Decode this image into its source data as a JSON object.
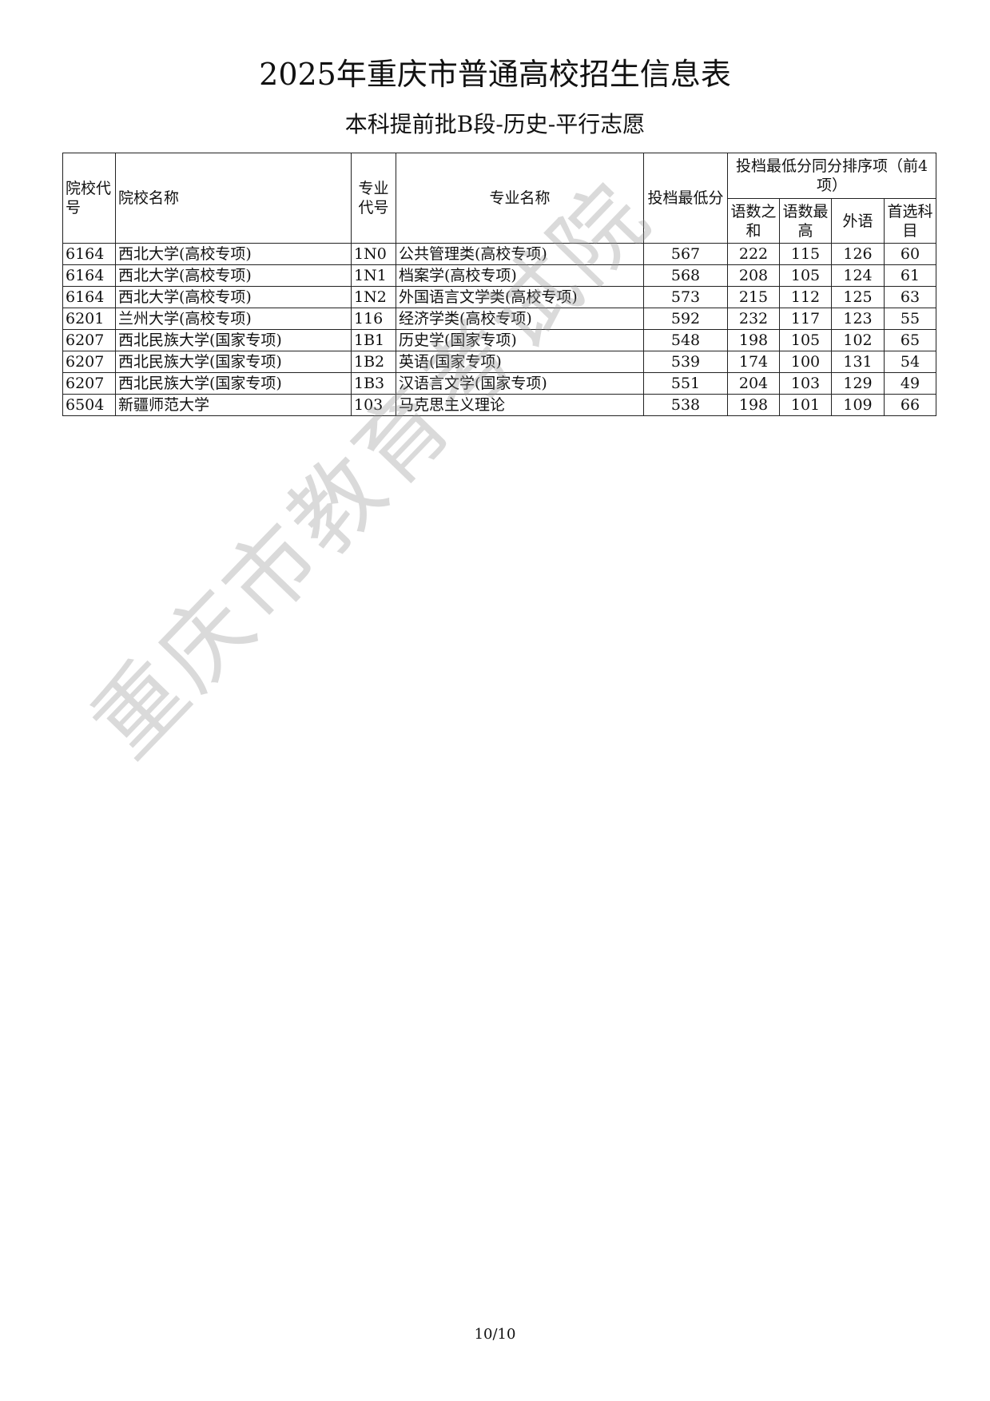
{
  "title": "2025年重庆市普通高校招生信息表",
  "subtitle": "本科提前批B段-历史-平行志愿",
  "headers": {
    "school_code": "院校代号",
    "school_name": "院校名称",
    "major_code": "专业代号",
    "major_name": "专业名称",
    "min_score": "投档最低分",
    "tiebreak_group": "投档最低分同分排序项（前4项）",
    "tb1": "语数之和",
    "tb2": "语数最高",
    "tb3": "外语",
    "tb4": "首选科目"
  },
  "rows": [
    {
      "school_code": "6164",
      "school_name": "西北大学(高校专项)",
      "major_code": "1N0",
      "major_name": "公共管理类(高校专项)",
      "min_score": "567",
      "tb1": "222",
      "tb2": "115",
      "tb3": "126",
      "tb4": "60"
    },
    {
      "school_code": "6164",
      "school_name": "西北大学(高校专项)",
      "major_code": "1N1",
      "major_name": "档案学(高校专项)",
      "min_score": "568",
      "tb1": "208",
      "tb2": "105",
      "tb3": "124",
      "tb4": "61"
    },
    {
      "school_code": "6164",
      "school_name": "西北大学(高校专项)",
      "major_code": "1N2",
      "major_name": "外国语言文学类(高校专项)",
      "min_score": "573",
      "tb1": "215",
      "tb2": "112",
      "tb3": "125",
      "tb4": "63"
    },
    {
      "school_code": "6201",
      "school_name": "兰州大学(高校专项)",
      "major_code": "116",
      "major_name": "经济学类(高校专项)",
      "min_score": "592",
      "tb1": "232",
      "tb2": "117",
      "tb3": "123",
      "tb4": "55"
    },
    {
      "school_code": "6207",
      "school_name": "西北民族大学(国家专项)",
      "major_code": "1B1",
      "major_name": "历史学(国家专项)",
      "min_score": "548",
      "tb1": "198",
      "tb2": "105",
      "tb3": "102",
      "tb4": "65"
    },
    {
      "school_code": "6207",
      "school_name": "西北民族大学(国家专项)",
      "major_code": "1B2",
      "major_name": "英语(国家专项)",
      "min_score": "539",
      "tb1": "174",
      "tb2": "100",
      "tb3": "131",
      "tb4": "54"
    },
    {
      "school_code": "6207",
      "school_name": "西北民族大学(国家专项)",
      "major_code": "1B3",
      "major_name": "汉语言文学(国家专项)",
      "min_score": "551",
      "tb1": "204",
      "tb2": "103",
      "tb3": "129",
      "tb4": "49"
    },
    {
      "school_code": "6504",
      "school_name": "新疆师范大学",
      "major_code": "103",
      "major_name": "马克思主义理论",
      "min_score": "538",
      "tb1": "198",
      "tb2": "101",
      "tb3": "109",
      "tb4": "66"
    }
  ],
  "watermark": "重庆市教育考试院",
  "page_number": "10/10"
}
